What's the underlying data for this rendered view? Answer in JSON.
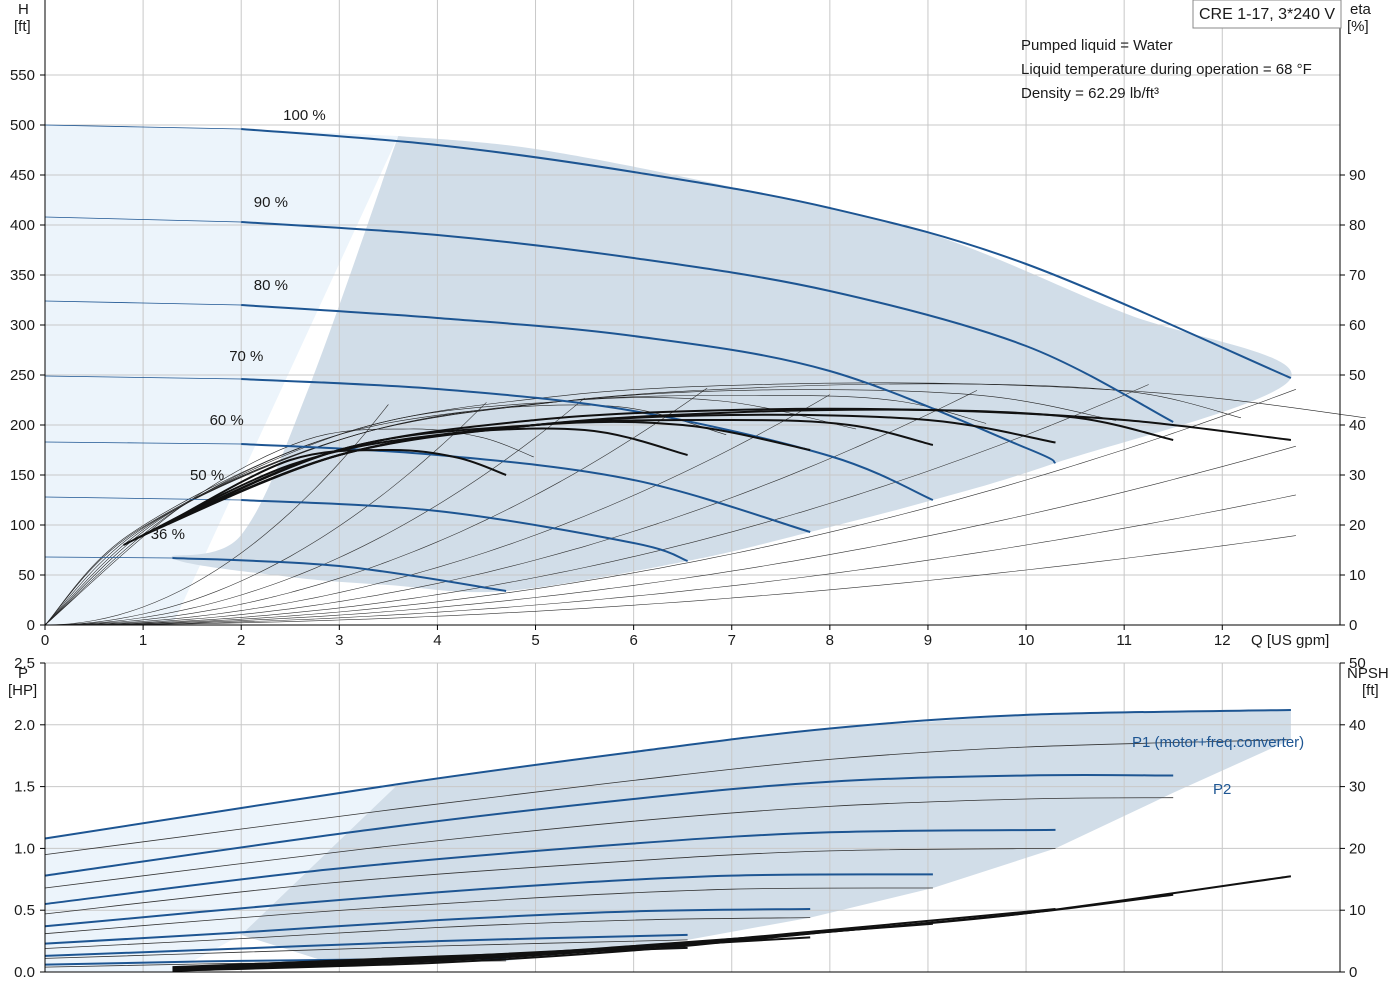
{
  "model_label": "CRE 1-17, 3*240 V",
  "info": {
    "line1": "Pumped liquid = Water",
    "line2": "Liquid temperature during operation = 68 °F",
    "line3": "Density = 62.29 lb/ft³"
  },
  "colors": {
    "curve_blue": "#1d5592",
    "curve_black": "#111111",
    "fill_region": "#d1dde8",
    "fill_light": "#ecf4fb",
    "grid": "#c8c8c8"
  },
  "chart_data": [
    {
      "type": "line",
      "title": "",
      "xlabel": "Q [US gpm]",
      "ylabel": "H\n[ft]",
      "y2label": "eta\n[%]",
      "xlim": [
        0,
        13.2
      ],
      "ylim": [
        0,
        625
      ],
      "y2lim": [
        0,
        125
      ],
      "x_ticks": [
        0,
        1,
        2,
        3,
        4,
        5,
        6,
        7,
        8,
        9,
        10,
        11,
        12
      ],
      "y_ticks": [
        0,
        50,
        100,
        150,
        200,
        250,
        300,
        350,
        400,
        450,
        500,
        550
      ],
      "y2_ticks": [
        0,
        10,
        20,
        30,
        40,
        50,
        60,
        70,
        80,
        90
      ],
      "grid": true,
      "head_curves": [
        {
          "name": "100 %",
          "qmax": 12.7,
          "points": [
            [
              0,
              500
            ],
            [
              2,
              496
            ],
            [
              4,
              480
            ],
            [
              6,
              453
            ],
            [
              8,
              417
            ],
            [
              10,
              361
            ],
            [
              12.7,
              247
            ]
          ]
        },
        {
          "name": "90 %",
          "qmax": 11.5,
          "points": [
            [
              0,
              408
            ],
            [
              2,
              403
            ],
            [
              4,
              390
            ],
            [
              6,
              367
            ],
            [
              8,
              334
            ],
            [
              10,
              279
            ],
            [
              11.5,
              203
            ]
          ]
        },
        {
          "name": "80 %",
          "qmax": 10.3,
          "points": [
            [
              0,
              324
            ],
            [
              2,
              320
            ],
            [
              4,
              307
            ],
            [
              6,
              289
            ],
            [
              8,
              254
            ],
            [
              10,
              177
            ],
            [
              10.3,
              162
            ]
          ]
        },
        {
          "name": "70 %",
          "qmax": 9.05,
          "points": [
            [
              0,
              249
            ],
            [
              2,
              246
            ],
            [
              4,
              236
            ],
            [
              6,
              214
            ],
            [
              8,
              169
            ],
            [
              9.05,
              125
            ]
          ]
        },
        {
          "name": "60 %",
          "qmax": 7.8,
          "points": [
            [
              0,
              183
            ],
            [
              2,
              181
            ],
            [
              4,
              170
            ],
            [
              6,
              145
            ],
            [
              7.8,
              93
            ]
          ]
        },
        {
          "name": "50 %",
          "qmax": 6.55,
          "points": [
            [
              0,
              128
            ],
            [
              2,
              125
            ],
            [
              4,
              114
            ],
            [
              6,
              82
            ],
            [
              6.55,
              64
            ]
          ]
        },
        {
          "name": "36 %",
          "qmax": 4.7,
          "points": [
            [
              0,
              68
            ],
            [
              1.3,
              67
            ],
            [
              3,
              59
            ],
            [
              4.7,
              34
            ]
          ]
        }
      ],
      "eta_curves": [
        {
          "name": "100 %",
          "points": [
            [
              1.3,
              21
            ],
            [
              3,
              35
            ],
            [
              5,
              41
            ],
            [
              7,
              43
            ],
            [
              9,
              43
            ],
            [
              11,
              41
            ],
            [
              12.7,
              37
            ]
          ]
        },
        {
          "name": "90 %",
          "points": [
            [
              1.2,
              20
            ],
            [
              3,
              34
            ],
            [
              5,
              40
            ],
            [
              7,
              42.5
            ],
            [
              9,
              43
            ],
            [
              10.5,
              41.5
            ],
            [
              11.5,
              37
            ]
          ]
        },
        {
          "name": "80 %",
          "points": [
            [
              1.1,
              19
            ],
            [
              3,
              34
            ],
            [
              5,
              40
            ],
            [
              7,
              42
            ],
            [
              9,
              41
            ],
            [
              10.3,
              36.5
            ]
          ]
        },
        {
          "name": "70 %",
          "points": [
            [
              1.0,
              18
            ],
            [
              3,
              34
            ],
            [
              5,
              40
            ],
            [
              7,
              41
            ],
            [
              8.2,
              40
            ],
            [
              9.05,
              36
            ]
          ]
        },
        {
          "name": "60 %",
          "points": [
            [
              0.9,
              17
            ],
            [
              3,
              35
            ],
            [
              5,
              40
            ],
            [
              6.5,
              40
            ],
            [
              7.8,
              35
            ]
          ]
        },
        {
          "name": "50 %",
          "points": [
            [
              0.8,
              16
            ],
            [
              2.5,
              32
            ],
            [
              4,
              38
            ],
            [
              5.5,
              39
            ],
            [
              6.55,
              34
            ]
          ]
        },
        {
          "name": "36 %",
          "points": [
            [
              1.3,
              21
            ],
            [
              2.5,
              33
            ],
            [
              3.5,
              35
            ],
            [
              4.2,
              33.5
            ],
            [
              4.7,
              30
            ]
          ]
        }
      ]
    },
    {
      "type": "line",
      "title": "",
      "xlabel": "",
      "ylabel": "P\n[HP]",
      "y2label": "NPSH\n[ft]",
      "xlim": [
        0,
        13.2
      ],
      "ylim": [
        0,
        2.5
      ],
      "y2lim": [
        0,
        50
      ],
      "y_ticks": [
        "0.0",
        "0.5",
        "1.0",
        "1.5",
        "2.0",
        "2.5"
      ],
      "y2_ticks": [
        0,
        10,
        20,
        30,
        40,
        50
      ],
      "grid": true,
      "power_p1": [
        {
          "name": "100 %",
          "points": [
            [
              0,
              1.08
            ],
            [
              3.6,
              1.52
            ],
            [
              6,
              1.78
            ],
            [
              8,
              1.97
            ],
            [
              10,
              2.08
            ],
            [
              12.7,
              2.12
            ]
          ]
        },
        {
          "name": "90 %",
          "points": [
            [
              0,
              0.78
            ],
            [
              3.3,
              1.15
            ],
            [
              6,
              1.4
            ],
            [
              8,
              1.54
            ],
            [
              10,
              1.59
            ],
            [
              11.5,
              1.59
            ]
          ]
        },
        {
          "name": "80 %",
          "points": [
            [
              0,
              0.55
            ],
            [
              2.9,
              0.83
            ],
            [
              6,
              1.04
            ],
            [
              8,
              1.13
            ],
            [
              10.3,
              1.15
            ]
          ]
        },
        {
          "name": "70 %",
          "points": [
            [
              0,
              0.37
            ],
            [
              2.5,
              0.55
            ],
            [
              5,
              0.7
            ],
            [
              7,
              0.78
            ],
            [
              9.05,
              0.79
            ]
          ]
        },
        {
          "name": "60 %",
          "points": [
            [
              0,
              0.23
            ],
            [
              2,
              0.32
            ],
            [
              4,
              0.42
            ],
            [
              6,
              0.49
            ],
            [
              7.8,
              0.51
            ]
          ]
        },
        {
          "name": "50 %",
          "points": [
            [
              0,
              0.13
            ],
            [
              2,
              0.19
            ],
            [
              4,
              0.25
            ],
            [
              6.55,
              0.3
            ]
          ]
        },
        {
          "name": "36 %",
          "points": [
            [
              0,
              0.06
            ],
            [
              2,
              0.09
            ],
            [
              4.7,
              0.11
            ]
          ]
        }
      ],
      "power_p2": [
        {
          "name": "100 %",
          "points": [
            [
              0,
              0.95
            ],
            [
              3.6,
              1.32
            ],
            [
              6,
              1.55
            ],
            [
              8,
              1.72
            ],
            [
              10,
              1.82
            ],
            [
              12.7,
              1.88
            ]
          ]
        },
        {
          "name": "90 %",
          "points": [
            [
              0,
              0.68
            ],
            [
              3.3,
              1.0
            ],
            [
              6,
              1.22
            ],
            [
              8,
              1.34
            ],
            [
              10,
              1.4
            ],
            [
              11.5,
              1.41
            ]
          ]
        },
        {
          "name": "80 %",
          "points": [
            [
              0,
              0.47
            ],
            [
              2.9,
              0.72
            ],
            [
              6,
              0.9
            ],
            [
              8,
              0.98
            ],
            [
              10.3,
              1.0
            ]
          ]
        },
        {
          "name": "70 %",
          "points": [
            [
              0,
              0.31
            ],
            [
              2.5,
              0.47
            ],
            [
              5,
              0.6
            ],
            [
              7,
              0.67
            ],
            [
              9.05,
              0.68
            ]
          ]
        },
        {
          "name": "60 %",
          "points": [
            [
              0,
              0.19
            ],
            [
              2,
              0.27
            ],
            [
              4,
              0.36
            ],
            [
              6,
              0.42
            ],
            [
              7.8,
              0.44
            ]
          ]
        },
        {
          "name": "50 %",
          "points": [
            [
              0,
              0.11
            ],
            [
              2,
              0.16
            ],
            [
              4,
              0.21
            ],
            [
              6.55,
              0.26
            ]
          ]
        },
        {
          "name": "36 %",
          "points": [
            [
              0,
              0.04
            ],
            [
              2,
              0.07
            ],
            [
              4.7,
              0.09
            ]
          ]
        }
      ],
      "npsh": [
        {
          "name": "100 %",
          "points": [
            [
              1.3,
              0.2
            ],
            [
              4,
              1.5
            ],
            [
              6,
              3.5
            ],
            [
              8,
              6.5
            ],
            [
              10,
              9.5
            ],
            [
              12.7,
              15.5
            ]
          ]
        },
        {
          "name": "90 %",
          "points": [
            [
              1.3,
              0.3
            ],
            [
              4,
              1.8
            ],
            [
              6,
              3.8
            ],
            [
              8,
              6.5
            ],
            [
              10,
              9.5
            ],
            [
              11.5,
              12.5
            ]
          ]
        },
        {
          "name": "80 %",
          "points": [
            [
              1.3,
              0.4
            ],
            [
              4,
              2.0
            ],
            [
              6,
              4.0
            ],
            [
              8,
              6.8
            ],
            [
              10.3,
              10.2
            ]
          ]
        },
        {
          "name": "70 %",
          "points": [
            [
              1.3,
              0.5
            ],
            [
              4,
              2.2
            ],
            [
              6,
              4.2
            ],
            [
              9.05,
              7.8
            ]
          ]
        },
        {
          "name": "60 %",
          "points": [
            [
              1.3,
              0.6
            ],
            [
              4,
              2.4
            ],
            [
              6,
              4.0
            ],
            [
              7.8,
              5.6
            ]
          ]
        },
        {
          "name": "50 %",
          "points": [
            [
              1.3,
              0.7
            ],
            [
              4,
              2.5
            ],
            [
              6.55,
              3.9
            ]
          ]
        },
        {
          "name": "36 %",
          "points": [
            [
              1.3,
              0.8
            ],
            [
              3,
              1.8
            ],
            [
              4.7,
              2.8
            ]
          ]
        }
      ],
      "series_labels": {
        "p1": "P1 (motor+freq.converter)",
        "p2": "P2"
      }
    }
  ]
}
